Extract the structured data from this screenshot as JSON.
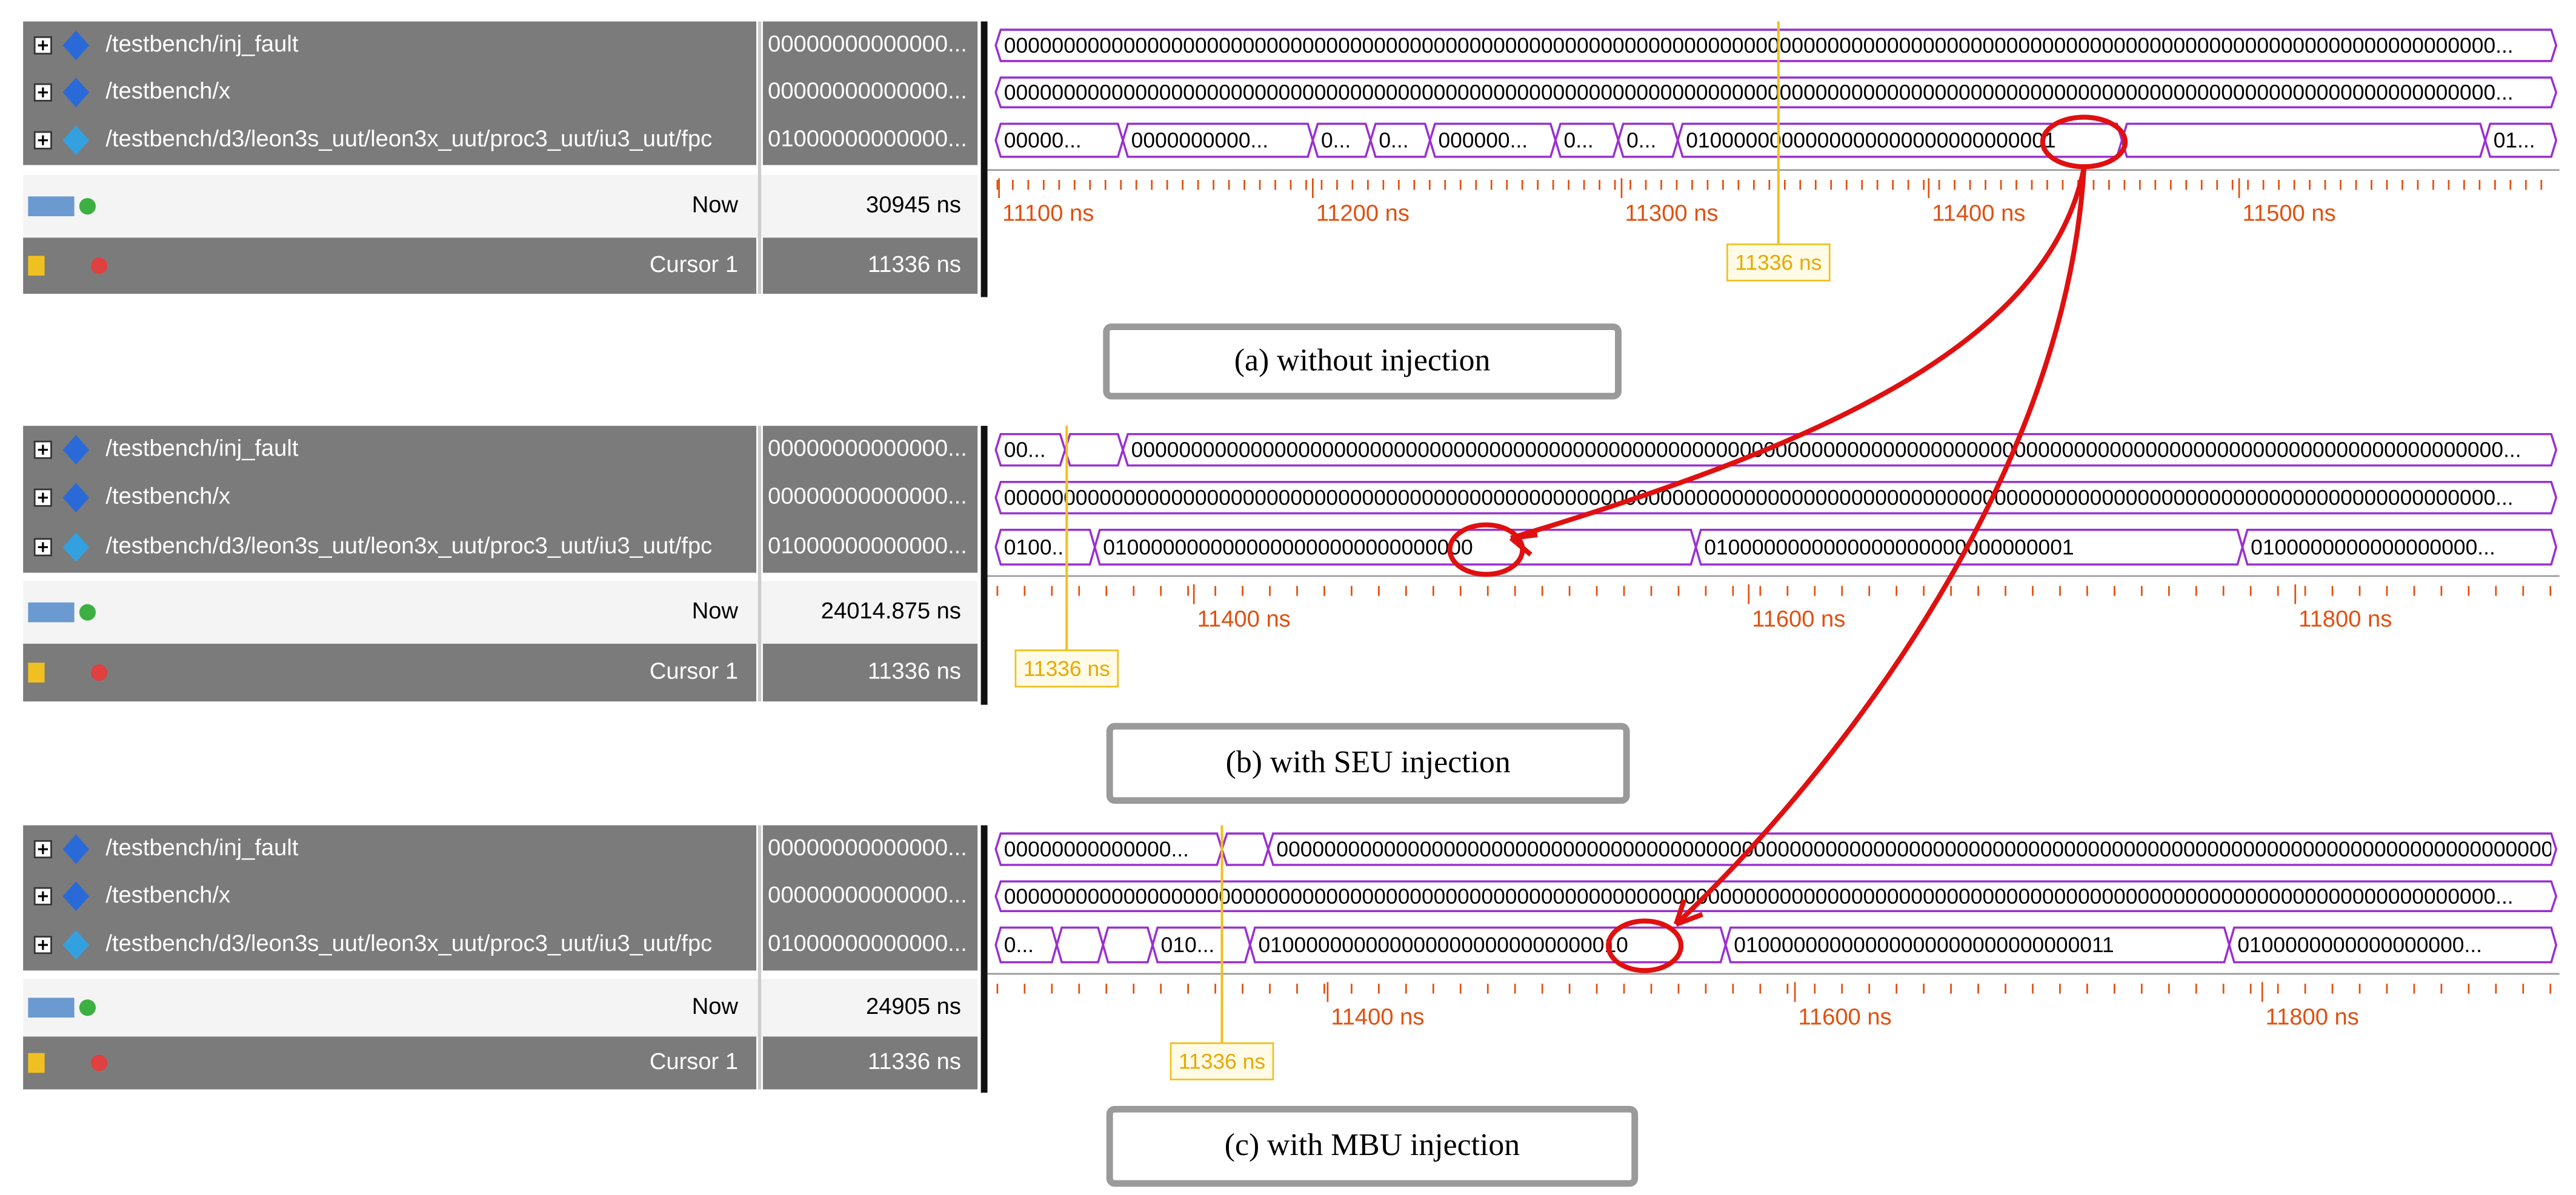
{
  "panels": [
    {
      "caption": "(a) without injection",
      "signals": [
        {
          "name": "/testbench/inj_fault",
          "value": "00000000000000...",
          "waves": [
            "00000000000000000000000000000000000000000000000000000000000000000000000000000000000000000000000000000000000000000000000000000..."
          ]
        },
        {
          "name": "/testbench/x",
          "value": "00000000000000...",
          "waves": [
            "00000000000000000000000000000000000000000000000000000000000000000000000000000000000000000000000000000000000000000000000000000..."
          ]
        },
        {
          "name": "/testbench/d3/leon3s_uut/leon3x_uut/proc3_uut/iu3_uut/fpc",
          "value": "01000000000000...",
          "waves": [
            "00000...",
            "0000000000...",
            "0...",
            "0...",
            "000000...",
            "0...",
            "0...",
            "0100000000000000000000000000001",
            "01..."
          ]
        }
      ],
      "now": {
        "label": "Now",
        "value": "30945 ns"
      },
      "cursor": {
        "label": "Cursor 1",
        "value": "11336 ns"
      },
      "time_labels": [
        "11100 ns",
        "11200 ns",
        "11300 ns",
        "11400 ns",
        "11500 ns"
      ],
      "cursor_time": "11336 ns"
    },
    {
      "caption": "(b) with SEU injection",
      "signals": [
        {
          "name": "/testbench/inj_fault",
          "value": "00000000000000...",
          "waves": [
            "00...",
            "0000000000000000000000000000000000000000000000000000000000000000000000000000000000000000000000000000000000000000000..."
          ]
        },
        {
          "name": "/testbench/x",
          "value": "00000000000000...",
          "waves": [
            "00000000000000000000000000000000000000000000000000000000000000000000000000000000000000000000000000000000000000000000000000000..."
          ]
        },
        {
          "name": "/testbench/d3/leon3s_uut/leon3x_uut/proc3_uut/iu3_uut/fpc",
          "value": "01000000000000...",
          "waves": [
            "0100...",
            "0100000000000000000000000000000",
            "0100000000000000000000000000001",
            "0100000000000000000..."
          ]
        }
      ],
      "now": {
        "label": "Now",
        "value": "24014.875 ns"
      },
      "cursor": {
        "label": "Cursor 1",
        "value": "11336 ns"
      },
      "time_labels": [
        "11400 ns",
        "11600 ns",
        "11800 ns"
      ],
      "cursor_time": "11336 ns"
    },
    {
      "caption": "(c) with MBU injection",
      "signals": [
        {
          "name": "/testbench/inj_fault",
          "value": "00000000000000...",
          "waves": [
            "00000000000000...",
            "0000000000000000000000000000000000000000000000000000000000000000000000000000000000000000000000000000000000000..."
          ]
        },
        {
          "name": "/testbench/x",
          "value": "00000000000000...",
          "waves": [
            "00000000000000000000000000000000000000000000000000000000000000000000000000000000000000000000000000000000000000000000000000000..."
          ]
        },
        {
          "name": "/testbench/d3/leon3s_uut/leon3x_uut/proc3_uut/iu3_uut/fpc",
          "value": "01000000000000...",
          "waves": [
            "0...",
            "010...",
            "0100000000000000000000000000010",
            "01000000000000000000000000000011",
            "0100000000000000000..."
          ]
        }
      ],
      "now": {
        "label": "Now",
        "value": "24905 ns"
      },
      "cursor": {
        "label": "Cursor 1",
        "value": "11336 ns"
      },
      "time_labels": [
        "11400 ns",
        "11600 ns",
        "11800 ns"
      ],
      "cursor_time": "11336 ns"
    }
  ]
}
